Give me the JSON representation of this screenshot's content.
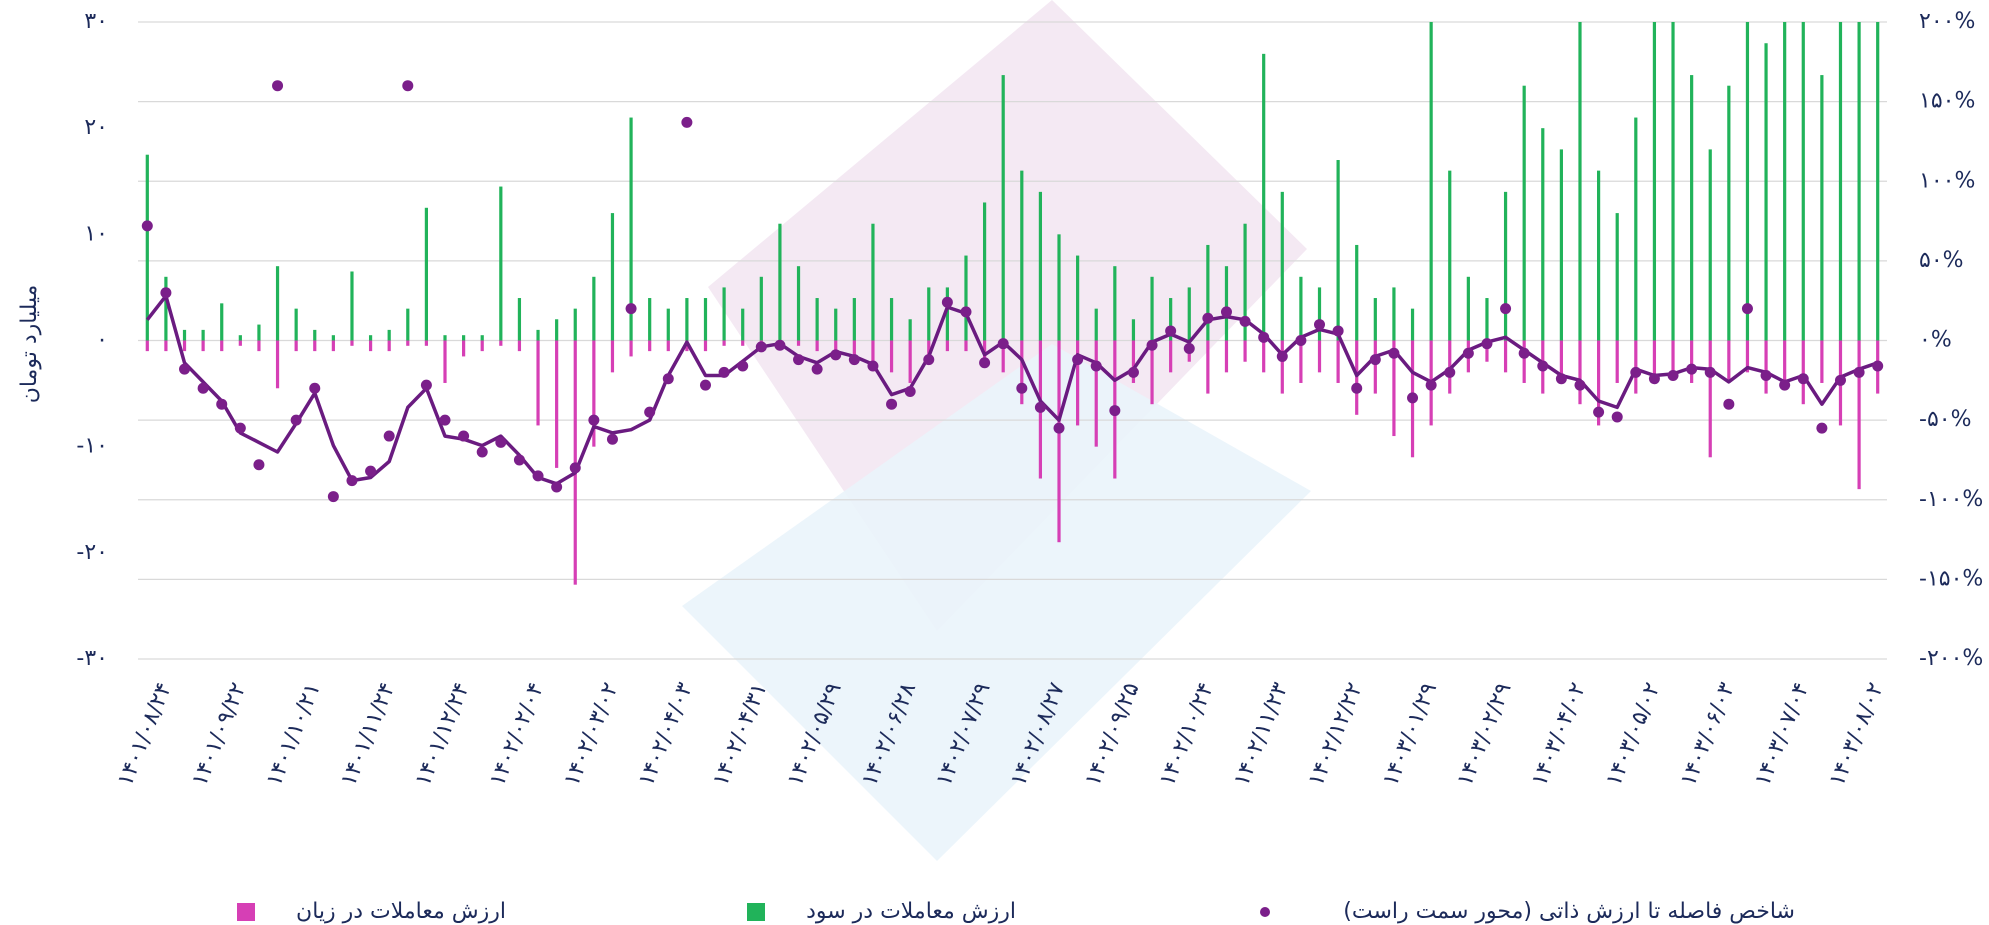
{
  "chart_data": {
    "type": "bar-line",
    "y_label": "میلیارد تومان",
    "categories": [
      null,
      "۱۴۰۱/۰۸/۲۴",
      null,
      null,
      null,
      "۱۴۰۱/۰۹/۲۲",
      null,
      null,
      null,
      "۱۴۰۱/۱۰/۲۱",
      null,
      null,
      null,
      "۱۴۰۱/۱۱/۲۴",
      null,
      null,
      null,
      "۱۴۰۱/۱۲/۲۴",
      null,
      null,
      null,
      "۱۴۰۲/۰۲/۰۴",
      null,
      null,
      null,
      "۱۴۰۲/۰۳/۰۲",
      null,
      null,
      null,
      "۱۴۰۲/۰۴/۰۳",
      null,
      null,
      null,
      "۱۴۰۲/۰۴/۳۱",
      null,
      null,
      null,
      "۱۴۰۲/۰۵/۲۹",
      null,
      null,
      null,
      "۱۴۰۲/۰۶/۲۸",
      null,
      null,
      null,
      "۱۴۰۲/۰۷/۲۹",
      null,
      null,
      null,
      "۱۴۰۲/۰۸/۲۷",
      null,
      null,
      null,
      "۱۴۰۲/۰۹/۲۵",
      null,
      null,
      null,
      "۱۴۰۲/۱۰/۲۴",
      null,
      null,
      null,
      "۱۴۰۲/۱۱/۲۳",
      null,
      null,
      null,
      "۱۴۰۲/۱۲/۲۲",
      null,
      null,
      null,
      "۱۴۰۳/۰۱/۲۹",
      null,
      null,
      null,
      "۱۴۰۳/۰۲/۲۹",
      null,
      null,
      null,
      "۱۴۰۳/۰۴/۰۲",
      null,
      null,
      null,
      "۱۴۰۳/۰۵/۰۲",
      null,
      null,
      null,
      "۱۴۰۳/۰۶/۰۳",
      null,
      null,
      null,
      "۱۴۰۳/۰۷/۰۴",
      null,
      null,
      null,
      "۱۴۰۳/۰۸/۰۲"
    ],
    "series": [
      {
        "name": "ارزش معاملات در سود",
        "color": "#21b35a",
        "kind": "bar",
        "values": [
          17.5,
          6,
          1,
          1,
          3.5,
          0.5,
          1.5,
          7,
          3,
          1,
          0.5,
          6.5,
          0.5,
          1,
          3,
          12.5,
          0.5,
          0.5,
          0.5,
          14.5,
          4,
          1,
          2,
          3,
          6,
          12,
          21,
          4,
          3,
          4,
          4,
          5,
          3,
          6,
          11,
          7,
          4,
          3,
          4,
          11,
          4,
          2,
          5,
          5,
          8,
          13,
          25,
          16,
          14,
          10,
          8,
          3,
          7,
          2,
          6,
          4,
          5,
          9,
          7,
          11,
          27,
          14,
          6,
          5,
          17,
          9,
          4,
          5,
          3,
          30,
          16,
          6,
          4,
          14,
          24,
          20,
          18,
          30,
          16,
          12,
          21,
          30,
          30,
          25,
          18,
          24,
          30,
          28,
          30,
          30,
          25,
          30,
          30,
          30
        ]
      },
      {
        "name": "ارزش معاملات در زیان",
        "color": "#d63fb5",
        "kind": "bar",
        "values": [
          -1,
          -1,
          -1,
          -1,
          -1,
          -0.5,
          -1,
          -4.5,
          -1,
          -1,
          -1,
          -0.5,
          -1,
          -1,
          -0.5,
          -0.5,
          -4,
          -1.5,
          -1,
          -0.5,
          -1,
          -8,
          -12,
          -23,
          -10,
          -3,
          -1.5,
          -1,
          -1,
          -1,
          -1,
          -0.5,
          -0.5,
          -0.5,
          -0.5,
          -0.5,
          -1,
          -1,
          -1.5,
          -2,
          -3,
          -4,
          -2,
          -1,
          -1,
          -2,
          -3,
          -6,
          -13,
          -19,
          -8,
          -10,
          -13,
          -4,
          -6,
          -3,
          -2,
          -5,
          -3,
          -2,
          -3,
          -5,
          -4,
          -3,
          -4,
          -7,
          -5,
          -9,
          -11,
          -8,
          -5,
          -3,
          -2,
          -3,
          -4,
          -5,
          -4,
          -6,
          -8,
          -4,
          -5,
          -4,
          -3,
          -4,
          -11,
          -4,
          -3,
          -5,
          -4,
          -6,
          -4,
          -8,
          -14,
          -5
        ]
      },
      {
        "name": "شاخص فاصله تا ارزش ذاتی (محور سمت راست)",
        "color": "#7b1f8a",
        "kind": "dots",
        "axis": "y2",
        "values": [
          72,
          30,
          -18,
          -30,
          -40,
          -55,
          -78,
          160,
          -50,
          -30,
          -98,
          -88,
          -82,
          -60,
          160,
          -28,
          -50,
          -60,
          -70,
          -64,
          -75,
          -85,
          -92,
          -80,
          -50,
          -62,
          20,
          -45,
          -24,
          137,
          -28,
          -20,
          -16,
          -4,
          -3,
          -12,
          -18,
          -9,
          -12,
          -16,
          -40,
          -32,
          -12,
          24,
          18,
          -14,
          -2,
          -30,
          -42,
          -55,
          -12,
          -16,
          -44,
          -20,
          -3,
          6,
          -5,
          14,
          18,
          12,
          2,
          -10,
          0,
          10,
          6,
          -30,
          -12,
          -8,
          -36,
          -28,
          -20,
          -8,
          -2,
          20,
          -8,
          -16,
          -24,
          -28,
          -45,
          -48,
          -20,
          -24,
          -22,
          -18,
          -20,
          -40,
          20,
          -22,
          -28,
          -24,
          -55,
          -25,
          -20,
          -16
        ]
      }
    ],
    "trend_line": {
      "color": "#6a1b80",
      "axis": "y2",
      "values": [
        13,
        28,
        -14,
        -26,
        -38,
        -58,
        -64,
        -70,
        -52,
        -33,
        -66,
        -88,
        -86,
        -76,
        -42,
        -30,
        -60,
        -62,
        -66,
        -60,
        -72,
        -86,
        -90,
        -83,
        -54,
        -58,
        -56,
        -50,
        -22,
        -1,
        -22,
        -22,
        -13,
        -4,
        -2,
        -10,
        -14,
        -7,
        -10,
        -15,
        -34,
        -30,
        -10,
        21,
        17,
        -9,
        -1,
        -12,
        -38,
        -50,
        -9,
        -14,
        -25,
        -18,
        -1,
        4,
        -1,
        13,
        15,
        13,
        4,
        -9,
        2,
        7,
        4,
        -22,
        -10,
        -6,
        -20,
        -26,
        -18,
        -6,
        -1,
        2,
        -6,
        -14,
        -22,
        -25,
        -38,
        -42,
        -18,
        -22,
        -21,
        -17,
        -18,
        -26,
        -17,
        -20,
        -26,
        -22,
        -40,
        -23,
        -18,
        -14
      ]
    },
    "ylim": [
      -30,
      30
    ],
    "yticks": [
      {
        "value": -30,
        "label": "-۳۰"
      },
      {
        "value": -20,
        "label": "-۲۰"
      },
      {
        "value": -10,
        "label": "-۱۰"
      },
      {
        "value": 0,
        "label": "۰"
      },
      {
        "value": 10,
        "label": "۱۰"
      },
      {
        "value": 20,
        "label": "۲۰"
      },
      {
        "value": 30,
        "label": "۳۰"
      }
    ],
    "y2lim": [
      -200,
      200
    ],
    "y2ticks": [
      {
        "value": -200,
        "label": "-۲۰۰%"
      },
      {
        "value": -150,
        "label": "-۱۵۰%"
      },
      {
        "value": -100,
        "label": "-۱۰۰%"
      },
      {
        "value": -50,
        "label": "-۵۰%"
      },
      {
        "value": 0,
        "label": "۰%"
      },
      {
        "value": 50,
        "label": "۵۰%"
      },
      {
        "value": 100,
        "label": "۱۰۰%"
      },
      {
        "value": 150,
        "label": "۱۵۰%"
      },
      {
        "value": 200,
        "label": "۲۰۰%"
      }
    ],
    "grid": true,
    "legend": "bottom"
  }
}
